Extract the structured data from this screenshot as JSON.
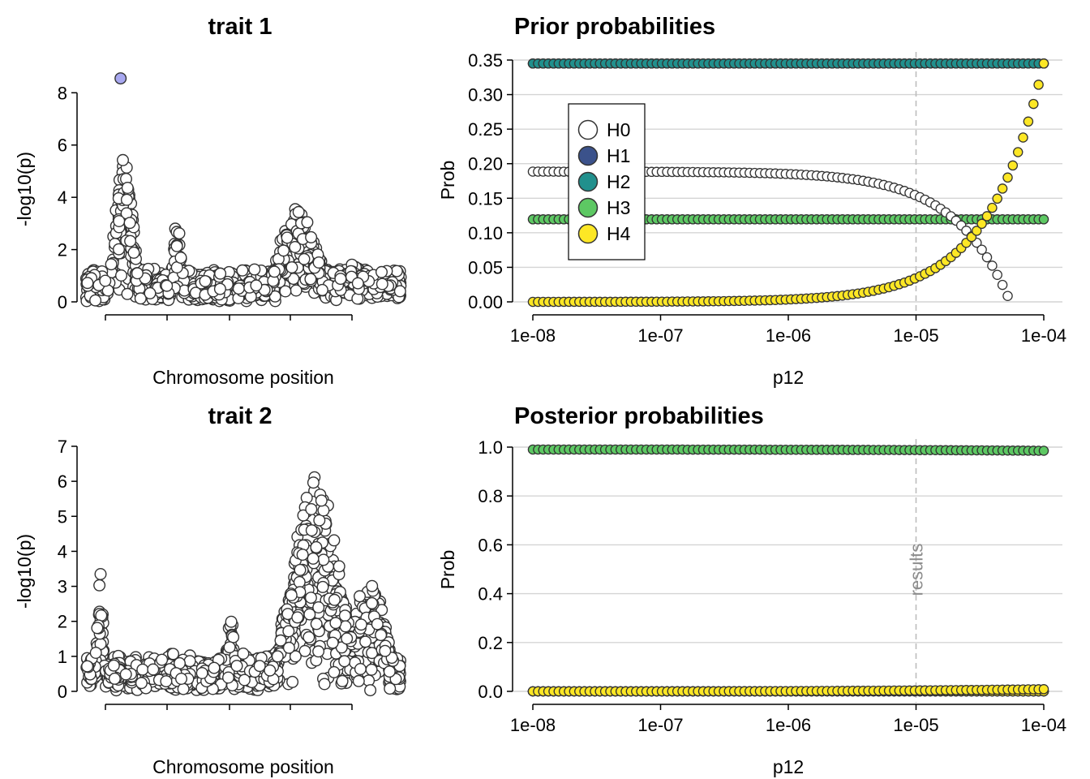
{
  "chart_data": [
    {
      "id": "trait1",
      "type": "scatter",
      "title": "trait 1",
      "xlabel": "Chromosome position",
      "ylabel": "-log10(p)",
      "ylim": [
        0,
        8.6
      ],
      "yticks": [
        0,
        2,
        4,
        6,
        8
      ],
      "ytick_labels": [
        "0",
        "2",
        "4",
        "6",
        "8"
      ],
      "point_fill": "#ffffff",
      "point_stroke": "#333333",
      "highlight": {
        "position": 0.11,
        "value": 8.55,
        "fill": "#a8a8f0"
      },
      "peaks": [
        {
          "center": 0.12,
          "width": 0.025,
          "height": 6.5
        },
        {
          "center": 0.29,
          "width": 0.012,
          "height": 3.45
        },
        {
          "center": 0.675,
          "width": 0.06,
          "height": 3.8
        },
        {
          "center": 0.84,
          "width": 0.05,
          "height": 1.5
        }
      ],
      "baseline": 1.3,
      "seed": 11
    },
    {
      "id": "trait2",
      "type": "scatter",
      "title": "trait 2",
      "xlabel": "Chromosome position",
      "ylabel": "-log10(p)",
      "ylim": [
        0,
        7.0
      ],
      "yticks": [
        0,
        1,
        2,
        3,
        4,
        5,
        6,
        7
      ],
      "ytick_labels": [
        "0",
        "1",
        "2",
        "3",
        "4",
        "5",
        "6",
        "7"
      ],
      "point_fill": "#ffffff",
      "point_stroke": "#333333",
      "peaks": [
        {
          "center": 0.045,
          "width": 0.01,
          "height": 3.5
        },
        {
          "center": 0.46,
          "width": 0.012,
          "height": 2.5
        },
        {
          "center": 0.73,
          "width": 0.07,
          "height": 6.85
        },
        {
          "center": 0.9,
          "width": 0.05,
          "height": 3.6
        }
      ],
      "baseline": 1.1,
      "seed": 23
    },
    {
      "id": "prior",
      "type": "scatter",
      "title": "Prior probabilities",
      "xlabel": "p12",
      "ylabel": "Prob",
      "xscale": "log",
      "xlim": [
        1e-08,
        0.0001
      ],
      "xticks": [
        1e-08,
        1e-07,
        1e-06,
        1e-05,
        0.0001
      ],
      "xtick_labels": [
        "1e-08",
        "1e-07",
        "1e-06",
        "1e-05",
        "1e-04"
      ],
      "ylim": [
        0,
        0.35
      ],
      "yticks": [
        0,
        0.05,
        0.1,
        0.15,
        0.2,
        0.25,
        0.3,
        0.35
      ],
      "ytick_labels": [
        "0.00",
        "0.05",
        "0.10",
        "0.15",
        "0.20",
        "0.25",
        "0.30",
        "0.35"
      ],
      "grid": true,
      "vline": {
        "x": 1e-05
      },
      "legend": {
        "placement": "top-left",
        "entries": [
          "H0",
          "H1",
          "H2",
          "H3",
          "H4"
        ]
      },
      "n_points": 100,
      "series": [
        {
          "name": "H0",
          "color": "#ffffff",
          "p1": 0.0001,
          "p2": 0.0001,
          "hyp": "H0"
        },
        {
          "name": "H1",
          "color": "#3b528b",
          "hyp": "H1"
        },
        {
          "name": "H2",
          "color": "#21908d",
          "hyp": "H2"
        },
        {
          "name": "H3",
          "color": "#5dc863",
          "hyp": "H3"
        },
        {
          "name": "H4",
          "color": "#fde725",
          "hyp": "H4"
        }
      ],
      "prior_model": {
        "H0_base": 0.1885,
        "H1": 0.345,
        "H2": 0.345,
        "H3": 0.1195
      }
    },
    {
      "id": "posterior",
      "type": "scatter",
      "title": "Posterior probabilities",
      "xlabel": "p12",
      "ylabel": "Prob",
      "xscale": "log",
      "xlim": [
        1e-08,
        0.0001
      ],
      "xticks": [
        1e-08,
        1e-07,
        1e-06,
        1e-05,
        0.0001
      ],
      "xtick_labels": [
        "1e-08",
        "1e-07",
        "1e-06",
        "1e-05",
        "1e-04"
      ],
      "ylim": [
        0,
        1.0
      ],
      "yticks": [
        0,
        0.2,
        0.4,
        0.6,
        0.8,
        1.0
      ],
      "ytick_labels": [
        "0.0",
        "0.2",
        "0.4",
        "0.6",
        "0.8",
        "1.0"
      ],
      "grid": true,
      "vline": {
        "x": 1e-05,
        "label": "results"
      },
      "n_points": 100,
      "series": [
        {
          "name": "H0",
          "color": "#ffffff",
          "start": 0.0,
          "end": 0.0
        },
        {
          "name": "H1",
          "color": "#3b528b",
          "start": 0.0,
          "end": 0.0
        },
        {
          "name": "H2",
          "color": "#21908d",
          "start": 0.0,
          "end": 0.0
        },
        {
          "name": "H4",
          "color": "#fde725",
          "start": 0.0,
          "end": 0.0
        },
        {
          "name": "H3",
          "color": "#5dc863",
          "start": 0.99,
          "end": 0.985
        },
        {
          "name": "H4",
          "color": "#fde725",
          "start": 0.0,
          "end": 0.009
        }
      ]
    }
  ]
}
